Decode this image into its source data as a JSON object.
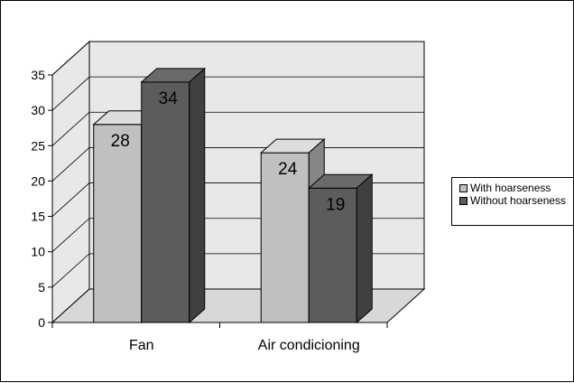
{
  "chart_data": {
    "type": "bar",
    "categories": [
      "Fan",
      "Air condicioning"
    ],
    "series": [
      {
        "name": "With hoarseness",
        "values": [
          28,
          24
        ],
        "color": "#c0c0c0"
      },
      {
        "name": "Without hoarseness",
        "values": [
          34,
          19
        ],
        "color": "#5c5c5c"
      }
    ],
    "yticks": [
      "0",
      "5",
      "10",
      "15",
      "20",
      "25",
      "30",
      "35"
    ],
    "ylim": [
      0,
      35
    ],
    "grid": true,
    "legend_position": "right",
    "style": "3d-clustered-column"
  }
}
